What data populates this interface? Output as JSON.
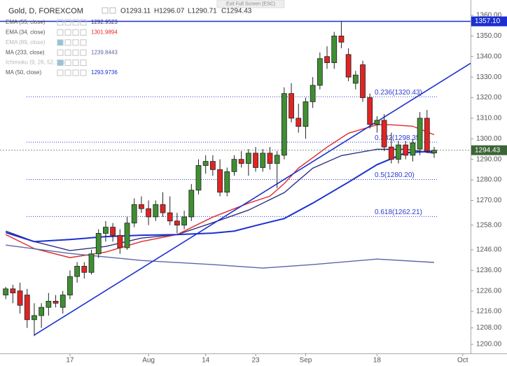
{
  "ui": {
    "tooltip": "Exit Full Screen (ESC)"
  },
  "chart_data": {
    "type": "candlestick",
    "title": "Gold, D, FOREXCOM",
    "ohlc_labels": [
      "O1293.11",
      "H1296.07",
      "L1290.71",
      "C1294.43"
    ],
    "up_color": "#3f8f32",
    "down_color": "#e02424",
    "open": [
      1224,
      1227,
      1226,
      1224,
      1212,
      1214,
      1218,
      1221,
      1218,
      1224,
      1233,
      1238,
      1235,
      1244,
      1254,
      1257,
      1253,
      1247,
      1259,
      1268,
      1266,
      1262,
      1268,
      1264,
      1260,
      1258,
      1262,
      1275,
      1287,
      1289,
      1285,
      1274,
      1284,
      1290,
      1288,
      1293,
      1286,
      1293,
      1288,
      1292,
      1322,
      1310,
      1306,
      1318,
      1326,
      1340,
      1337,
      1350,
      1341,
      1327,
      1336,
      1320,
      1307,
      1309,
      1296,
      1290,
      1297,
      1292,
      1295,
      1310,
      1293.11
    ],
    "high": [
      1228,
      1229,
      1230,
      1227,
      1220,
      1220,
      1225,
      1224,
      1226,
      1236,
      1240,
      1240,
      1246,
      1256,
      1260,
      1259,
      1256,
      1262,
      1271,
      1272,
      1270,
      1270,
      1274,
      1272,
      1264,
      1265,
      1278,
      1290,
      1292,
      1292,
      1290,
      1286,
      1292,
      1294,
      1295,
      1296,
      1295,
      1296,
      1294,
      1325,
      1327,
      1317,
      1320,
      1330,
      1342,
      1345,
      1352,
      1357,
      1344,
      1333,
      1338,
      1322,
      1311,
      1312,
      1303,
      1299,
      1299,
      1300,
      1313,
      1314,
      1296.07
    ],
    "low": [
      1222,
      1220,
      1215,
      1208,
      1204,
      1208,
      1214,
      1218,
      1215,
      1222,
      1230,
      1232,
      1234,
      1242,
      1250,
      1250,
      1244,
      1246,
      1257,
      1264,
      1258,
      1260,
      1262,
      1258,
      1254,
      1256,
      1260,
      1273,
      1283,
      1282,
      1272,
      1272,
      1282,
      1286,
      1282,
      1284,
      1284,
      1285,
      1276,
      1290,
      1308,
      1303,
      1300,
      1315,
      1324,
      1334,
      1334,
      1344,
      1328,
      1324,
      1318,
      1305,
      1303,
      1294,
      1288,
      1288,
      1290,
      1289,
      1292,
      1293,
      1290.71
    ],
    "close": [
      1227,
      1225,
      1219,
      1212,
      1214,
      1218,
      1221,
      1220,
      1224,
      1233,
      1238,
      1235,
      1244,
      1254,
      1257,
      1253,
      1247,
      1259,
      1268,
      1266,
      1262,
      1268,
      1264,
      1260,
      1258,
      1262,
      1275,
      1287,
      1289,
      1285,
      1274,
      1284,
      1290,
      1288,
      1293,
      1286,
      1293,
      1288,
      1292,
      1322,
      1310,
      1306,
      1318,
      1326,
      1339,
      1337,
      1350,
      1347,
      1330,
      1331,
      1320,
      1307,
      1309,
      1296,
      1290,
      1297,
      1292,
      1298,
      1310,
      1294,
      1294.43
    ],
    "xlim": [
      -0.8,
      65.1
    ],
    "xticks": [
      {
        "value": 9,
        "label": "17"
      },
      {
        "value": 20,
        "label": "Aug"
      },
      {
        "value": 28,
        "label": "14"
      },
      {
        "value": 35,
        "label": "23"
      },
      {
        "value": 42,
        "label": "Sep"
      },
      {
        "value": 52,
        "label": "18"
      },
      {
        "value": 64,
        "label": "Oct"
      }
    ],
    "ylim": [
      1195.6,
      1367.5
    ],
    "yticks": [
      {
        "value": 1200,
        "label": "1200.00"
      },
      {
        "value": 1208,
        "label": "1208.00"
      },
      {
        "value": 1216,
        "label": "1216.00"
      },
      {
        "value": 1226,
        "label": "1226.00"
      },
      {
        "value": 1236,
        "label": "1236.00"
      },
      {
        "value": 1246,
        "label": "1246.00"
      },
      {
        "value": 1258,
        "label": "1258.00"
      },
      {
        "value": 1270,
        "label": "1270.00"
      },
      {
        "value": 1280,
        "label": "1280.00"
      },
      {
        "value": 1290,
        "label": "1290.00"
      },
      {
        "value": 1300,
        "label": "1300.00"
      },
      {
        "value": 1310,
        "label": "1310.00"
      },
      {
        "value": 1320,
        "label": "1320.00"
      },
      {
        "value": 1330,
        "label": "1330.00"
      },
      {
        "value": 1340,
        "label": "1340.00"
      },
      {
        "value": 1350,
        "label": "1350.00"
      },
      {
        "value": 1360,
        "label": "1360.00"
      }
    ],
    "studies": [
      {
        "name": "EMA (55, close)",
        "last": 1292.9523,
        "color": "#2e3183",
        "x": [
          0,
          4,
          9,
          14,
          19,
          24,
          29,
          34,
          39,
          43,
          47,
          52,
          56,
          60
        ],
        "values": [
          1255.1,
          1250,
          1245.6,
          1247.6,
          1251.7,
          1253.4,
          1259.2,
          1265.3,
          1273.8,
          1285.7,
          1291.8,
          1294.9,
          1294.9,
          1292.9523
        ]
      },
      {
        "name": "EMA (34, close)",
        "last": 1301.9894,
        "color": "#e02a2a",
        "x": [
          0,
          4,
          9,
          14,
          19,
          24,
          29,
          34,
          37,
          39,
          41,
          45,
          48,
          52,
          54,
          57,
          60
        ],
        "values": [
          1253.4,
          1246.6,
          1242.2,
          1244.9,
          1250,
          1253.4,
          1261.9,
          1268.7,
          1272.1,
          1278.2,
          1285.7,
          1295.9,
          1302.7,
          1306.8,
          1306.8,
          1306.1,
          1301.9894
        ]
      },
      {
        "name": "EMA (89, close)",
        "hidden": true
      },
      {
        "name": "MA (233, close)",
        "last": 1239.8443,
        "color": "#5c66a8",
        "x": [
          0,
          9,
          19,
          29,
          36,
          43,
          52,
          60
        ],
        "values": [
          1248.3,
          1244.2,
          1240.8,
          1238.8,
          1237.1,
          1238.8,
          1241.5,
          1239.8443
        ]
      },
      {
        "name": "Ichimoku (9, 26, 52, 26)",
        "hidden": true
      },
      {
        "name": "MA (50, close)",
        "last": 1293.9736,
        "color": "#1c2fd0",
        "x": [
          0,
          4,
          9,
          14,
          19,
          24,
          29,
          32,
          35,
          39,
          43,
          48,
          52,
          56,
          60
        ],
        "values": [
          1254.4,
          1250,
          1251,
          1252.4,
          1253.1,
          1253.4,
          1254.1,
          1255.1,
          1257.8,
          1261.2,
          1268.7,
          1278.9,
          1287.4,
          1293.2,
          1293.9736
        ]
      }
    ],
    "fib_levels": [
      {
        "value": 1320.43,
        "label": "0.236(1320.43)"
      },
      {
        "value": 1298.35,
        "label": "0.382(1298.35)"
      },
      {
        "value": 1280.2,
        "label": "0.5(1280.20)"
      },
      {
        "value": 1262.21,
        "label": "0.618(1262.21)"
      }
    ],
    "fib_color": "#2e3ad0",
    "trendline": {
      "x": [
        4,
        68
      ],
      "values": [
        1204.5,
        1343
      ],
      "color": "#1c2fd0"
    },
    "price_lines": [
      {
        "value": 1357.1,
        "label": "1357.10",
        "color": "#1c2fd0"
      },
      {
        "value": 1294.43,
        "color": "#3b6636"
      }
    ]
  }
}
